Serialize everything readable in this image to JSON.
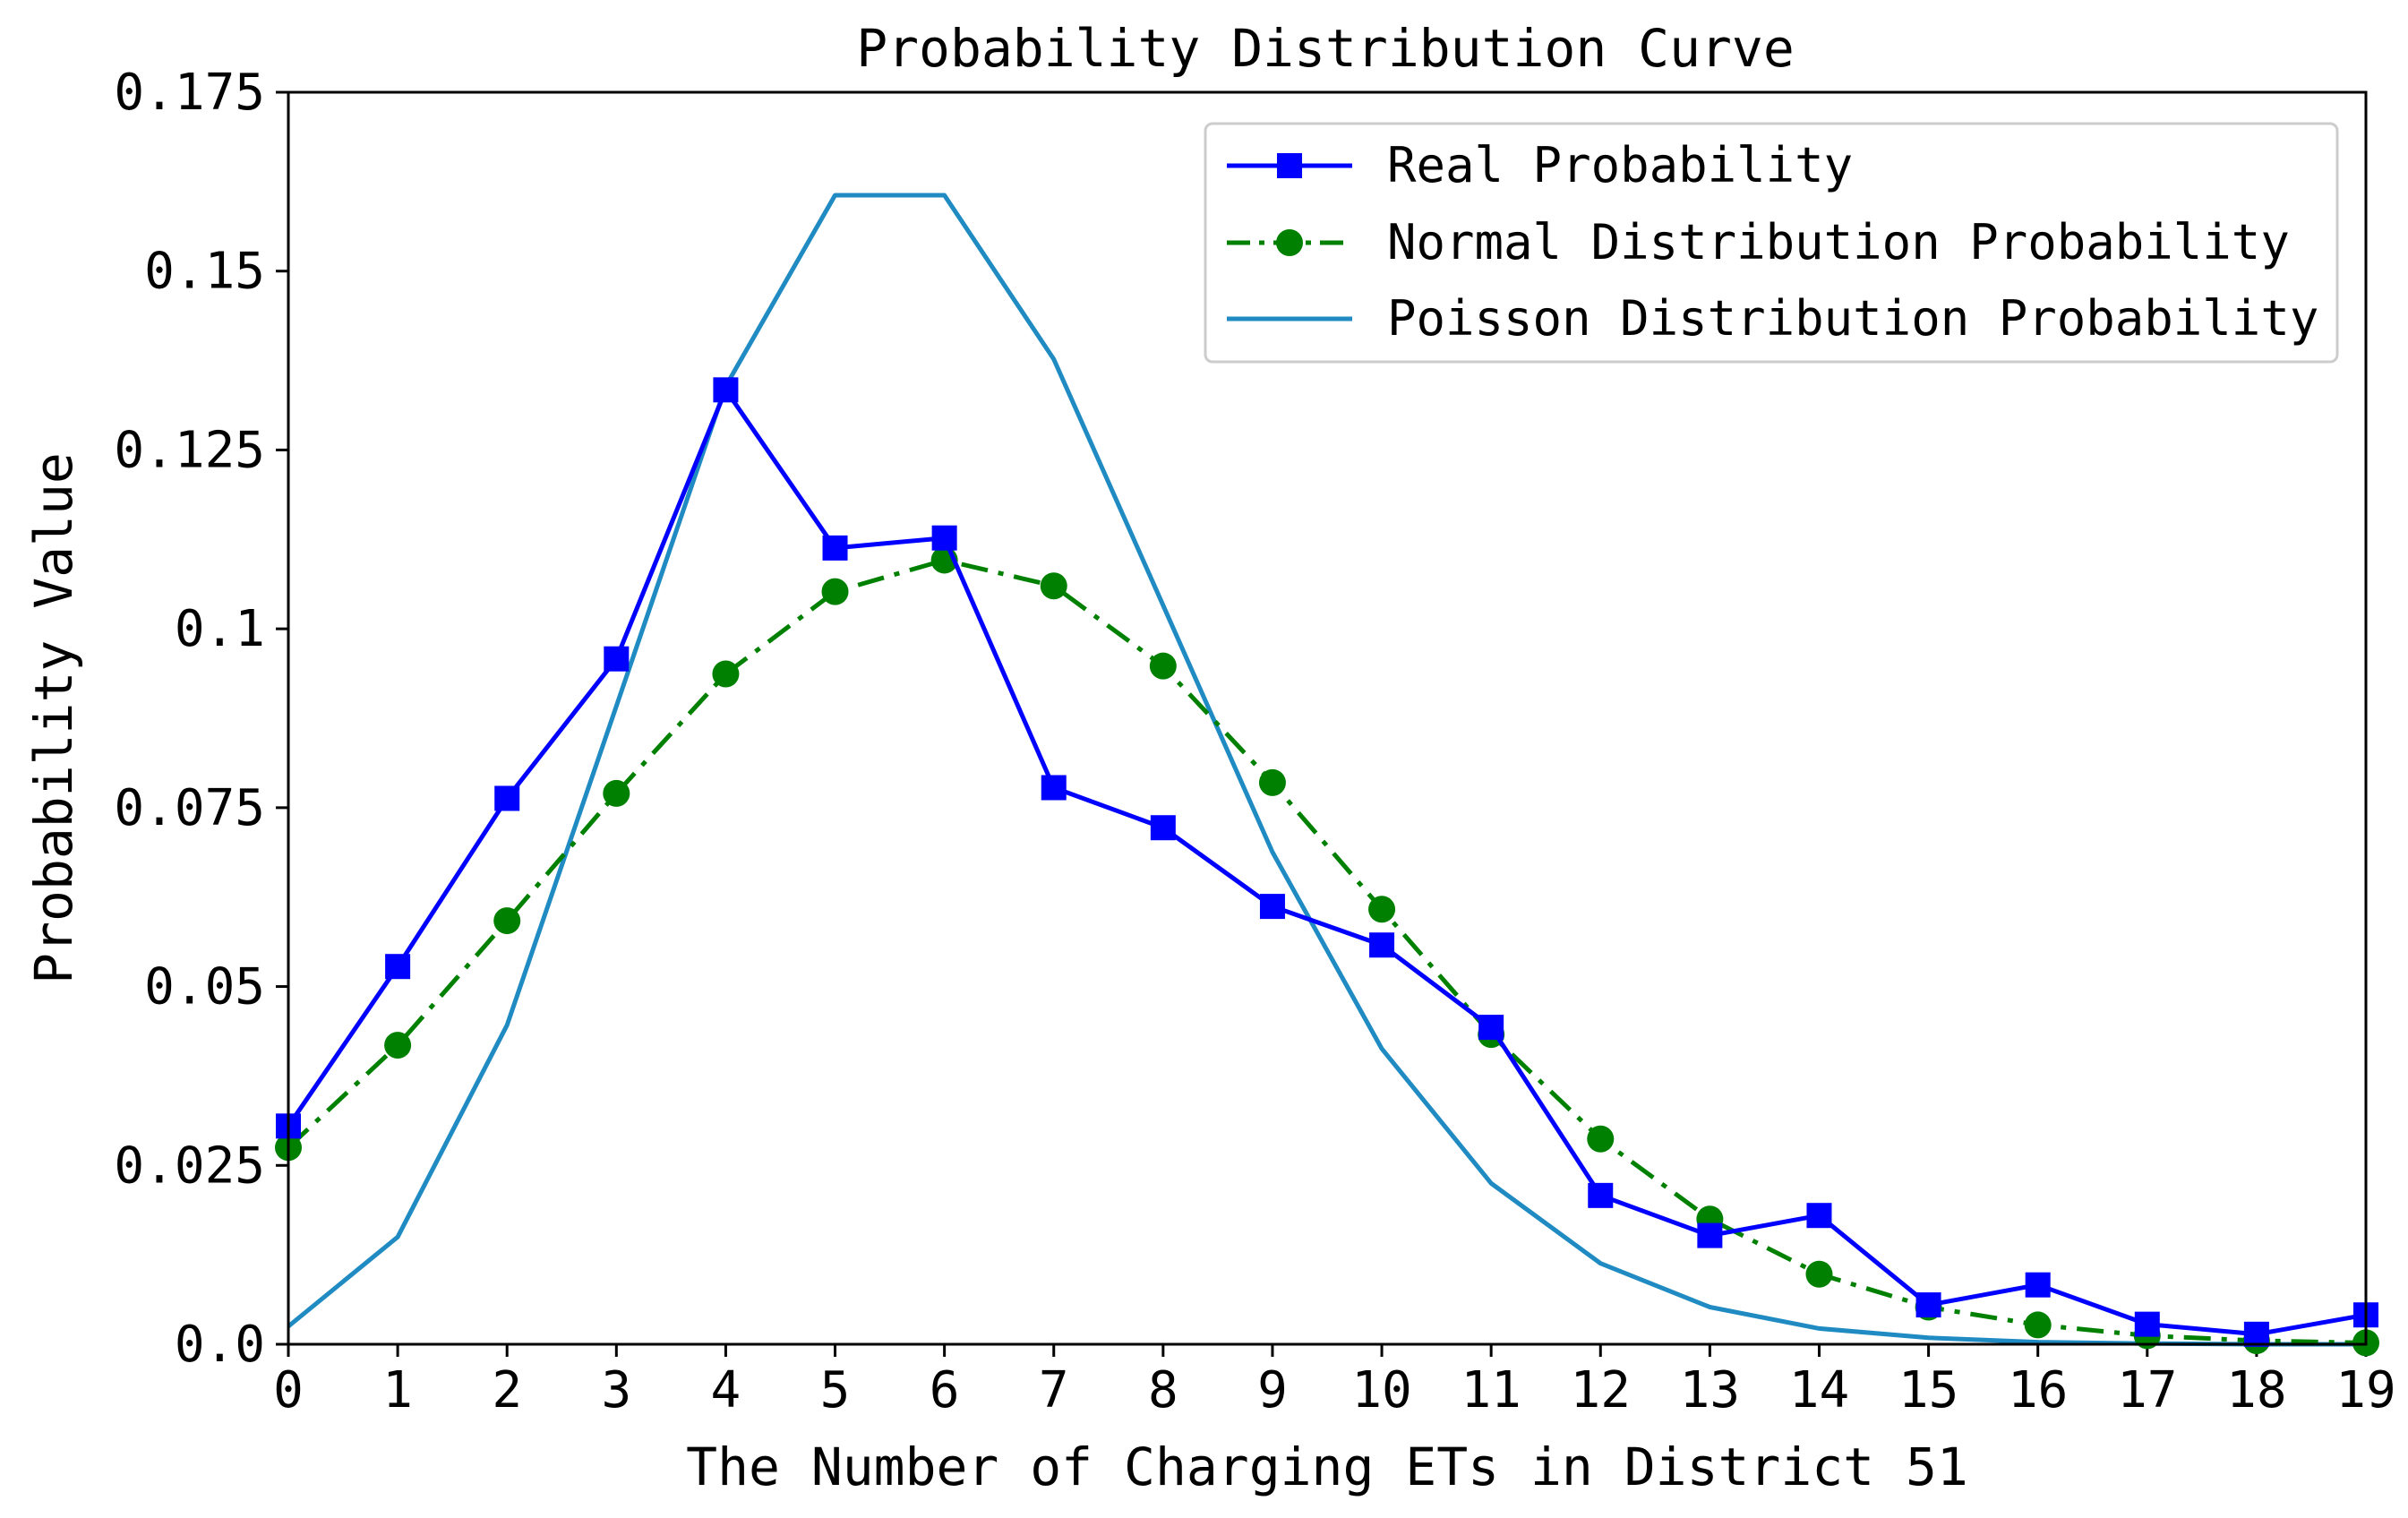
{
  "chart_data": {
    "type": "line",
    "title": "Probability Distribution Curve",
    "xlabel": "The Number of Charging ETs in District 51",
    "ylabel": "Probability Value",
    "xlim": [
      0,
      19
    ],
    "ylim": [
      0,
      0.175
    ],
    "grid": false,
    "legend_position": "top-right",
    "x": [
      0,
      1,
      2,
      3,
      4,
      5,
      6,
      7,
      8,
      9,
      10,
      11,
      12,
      13,
      14,
      15,
      16,
      17,
      18,
      19
    ],
    "x_tick_labels": [
      "0",
      "1",
      "2",
      "3",
      "4",
      "5",
      "6",
      "7",
      "8",
      "9",
      "10",
      "11",
      "12",
      "13",
      "14",
      "15",
      "16",
      "17",
      "18",
      "19"
    ],
    "y_ticks": [
      0,
      0.025,
      0.05,
      0.075,
      0.1,
      0.125,
      0.15,
      0.175
    ],
    "y_tick_labels": [
      "0.0",
      "0.025",
      "0.05",
      "0.075",
      "0.1",
      "0.125",
      "0.15",
      "0.175"
    ],
    "series": [
      {
        "name": "Real Probability",
        "color": "#0000ff",
        "line_style": "solid",
        "marker": "square",
        "values": [
          0.0305,
          0.0528,
          0.0763,
          0.0958,
          0.1334,
          0.1113,
          0.1127,
          0.0778,
          0.0722,
          0.0612,
          0.0558,
          0.0443,
          0.0208,
          0.0152,
          0.018,
          0.0055,
          0.0083,
          0.0028,
          0.0014,
          0.0041
        ]
      },
      {
        "name": "Normal Distribution Probability",
        "color": "#008000",
        "line_style": "dashdot",
        "marker": "circle",
        "values": [
          0.0275,
          0.0418,
          0.0592,
          0.077,
          0.0937,
          0.1052,
          0.1096,
          0.106,
          0.0948,
          0.0785,
          0.0608,
          0.0433,
          0.0287,
          0.0175,
          0.0098,
          0.0052,
          0.0027,
          0.0012,
          0.0005,
          0.0002
        ]
      },
      {
        "name": "Poisson Distribution Probability",
        "color": "#1f8bc2",
        "line_style": "solid",
        "marker": "none",
        "values": [
          0.0025,
          0.015,
          0.0446,
          0.0892,
          0.1339,
          0.1606,
          0.1606,
          0.1377,
          0.1033,
          0.0688,
          0.0413,
          0.0225,
          0.0113,
          0.0052,
          0.0022,
          0.0009,
          0.0003,
          0.0001,
          0.0,
          0.0
        ]
      }
    ]
  }
}
